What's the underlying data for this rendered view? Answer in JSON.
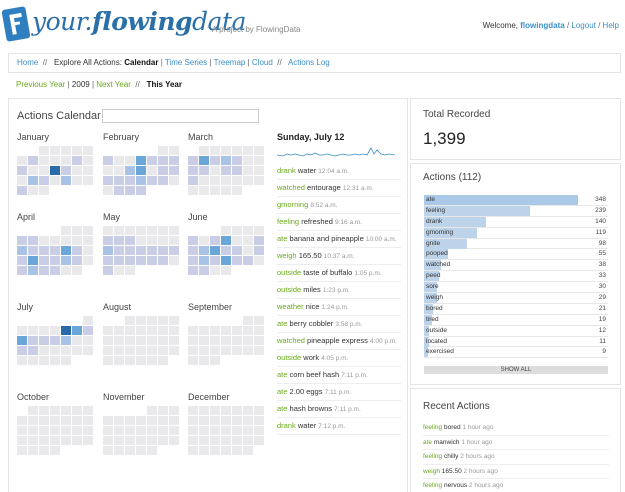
{
  "header": {
    "logo_prefix": "your.",
    "logo_bold": "flowing",
    "logo_suffix": "data",
    "tagline": "A project by FlowingData",
    "welcome": "Welcome,",
    "username": "flowingdata",
    "logout": "Logout",
    "help": "Help"
  },
  "nav": {
    "home": "Home",
    "explore": "Explore All Actions:",
    "calendar": "Calendar",
    "time_series": "Time Series",
    "treemap": "Treemap",
    "cloud": "Cloud",
    "actions_log": "Actions Log"
  },
  "years": {
    "previous": "Previous Year",
    "year": "2009",
    "next": "Next Year",
    "this_year": "This Year"
  },
  "calendar": {
    "title": "Actions Calendar /",
    "search_value": "",
    "months": [
      "January",
      "February",
      "March",
      "April",
      "May",
      "June",
      "July",
      "August",
      "September",
      "October",
      "November",
      "December"
    ]
  },
  "day": {
    "title": "Sunday, July 12",
    "entries": [
      {
        "action": "drank",
        "detail": "water",
        "time": "12:04 a.m."
      },
      {
        "action": "watched",
        "detail": "entourage",
        "time": "12:31 a.m."
      },
      {
        "action": "gmorning",
        "detail": "",
        "time": "8:52 a.m."
      },
      {
        "action": "feeling",
        "detail": "refreshed",
        "time": "9:16 a.m."
      },
      {
        "action": "ate",
        "detail": "banana and pineapple",
        "time": "10:00 a.m."
      },
      {
        "action": "weigh",
        "detail": "165.50",
        "time": "10:37 a.m."
      },
      {
        "action": "outside",
        "detail": "taste of buffalo",
        "time": "1:05 p.m."
      },
      {
        "action": "outside",
        "detail": "miles",
        "time": "1:23 p.m."
      },
      {
        "action": "weather",
        "detail": "nice",
        "time": "1:24 p.m."
      },
      {
        "action": "ate",
        "detail": "berry cobbler",
        "time": "3:58 p.m."
      },
      {
        "action": "watched",
        "detail": "pineapple express",
        "time": "4:00 p.m."
      },
      {
        "action": "outside",
        "detail": "work",
        "time": "4:05 p.m."
      },
      {
        "action": "ate",
        "detail": "corn beef hash",
        "time": "7:11 p.m."
      },
      {
        "action": "ate",
        "detail": "2.00 eggs",
        "time": "7:11 p.m."
      },
      {
        "action": "ate",
        "detail": "hash browns",
        "time": "7:11 p.m."
      },
      {
        "action": "drank",
        "detail": "water",
        "time": "7:12 p.m."
      }
    ]
  },
  "total": {
    "label": "Total Recorded",
    "value": "1,399"
  },
  "actions": {
    "title": "Actions (112)",
    "max": 348,
    "items": [
      {
        "name": "ate",
        "count": 348
      },
      {
        "name": "feeling",
        "count": 239
      },
      {
        "name": "drank",
        "count": 140
      },
      {
        "name": "gmorning",
        "count": 119
      },
      {
        "name": "gnite",
        "count": 98
      },
      {
        "name": "pooped",
        "count": 55
      },
      {
        "name": "watched",
        "count": 38
      },
      {
        "name": "peed",
        "count": 33
      },
      {
        "name": "sore",
        "count": 30
      },
      {
        "name": "weigh",
        "count": 29
      },
      {
        "name": "bored",
        "count": 21
      },
      {
        "name": "tired",
        "count": 19
      },
      {
        "name": "outside",
        "count": 12
      },
      {
        "name": "located",
        "count": 11
      },
      {
        "name": "exercised",
        "count": 9
      }
    ],
    "show_all": "SHOW ALL"
  },
  "recent": {
    "title": "Recent Actions",
    "items": [
      {
        "action": "feeling",
        "detail": "bored",
        "time": "1 hour ago"
      },
      {
        "action": "ate",
        "detail": "manwich",
        "time": "1 hour ago"
      },
      {
        "action": "feeling",
        "detail": "chilly",
        "time": "2 hours ago"
      },
      {
        "action": "weigh",
        "detail": "165.50",
        "time": "2 hours ago"
      },
      {
        "action": "feeling",
        "detail": "nervous",
        "time": "2 hours ago"
      }
    ]
  },
  "colors": {
    "accent": "#3b8fc8",
    "action_green": "#6aaa1e",
    "cell_empty": "#e9e9eb",
    "cell_low": "#c9cde6",
    "cell_mid": "#a9c3e6",
    "cell_high": "#6aa6d8",
    "cell_max": "#2a6aa8"
  },
  "icons": {
    "logo": "flowingdata-f-logo"
  }
}
